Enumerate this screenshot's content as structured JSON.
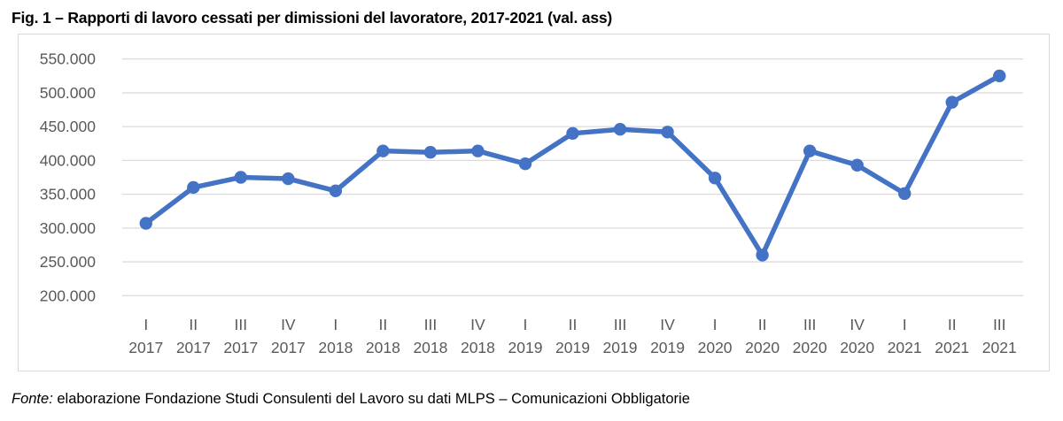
{
  "page": {
    "title": "Fig. 1 – Rapporti di lavoro cessati per dimissioni del lavoratore, 2017-2021 (val. ass)",
    "source_label": "Fonte:",
    "source_text": " elaborazione Fondazione Studi Consulenti del Lavoro su dati MLPS – Comunicazioni Obbligatorie"
  },
  "colors": {
    "line": "#4472C4",
    "marker": "#4472C4",
    "grid": "#DCDCDC",
    "axis_text": "#595959",
    "box_border": "#D9D9D9",
    "title_text": "#000000"
  },
  "chart_data": {
    "type": "line",
    "title": "Fig. 1 – Rapporti di lavoro cessati per dimissioni del lavoratore, 2017-2021 (val. ass)",
    "categories": [
      {
        "quarter": "I",
        "year": "2017"
      },
      {
        "quarter": "II",
        "year": "2017"
      },
      {
        "quarter": "III",
        "year": "2017"
      },
      {
        "quarter": "IV",
        "year": "2017"
      },
      {
        "quarter": "I",
        "year": "2018"
      },
      {
        "quarter": "II",
        "year": "2018"
      },
      {
        "quarter": "III",
        "year": "2018"
      },
      {
        "quarter": "IV",
        "year": "2018"
      },
      {
        "quarter": "I",
        "year": "2019"
      },
      {
        "quarter": "II",
        "year": "2019"
      },
      {
        "quarter": "III",
        "year": "2019"
      },
      {
        "quarter": "IV",
        "year": "2019"
      },
      {
        "quarter": "I",
        "year": "2020"
      },
      {
        "quarter": "II",
        "year": "2020"
      },
      {
        "quarter": "III",
        "year": "2020"
      },
      {
        "quarter": "IV",
        "year": "2020"
      },
      {
        "quarter": "I",
        "year": "2021"
      },
      {
        "quarter": "II",
        "year": "2021"
      },
      {
        "quarter": "III",
        "year": "2021"
      }
    ],
    "values": [
      307000,
      360000,
      375000,
      373000,
      355000,
      414000,
      412000,
      414000,
      395000,
      440000,
      446000,
      442000,
      374000,
      260000,
      414000,
      393000,
      351000,
      486000,
      525000
    ],
    "ylim": [
      200000,
      550000
    ],
    "ytick_step": 50000,
    "ytick_labels": [
      "550.000",
      "500.000",
      "450.000",
      "400.000",
      "350.000",
      "300.000",
      "250.000",
      "200.000"
    ],
    "xlabel": "",
    "ylabel": "",
    "grid": true,
    "legend": "none",
    "markers": true
  }
}
